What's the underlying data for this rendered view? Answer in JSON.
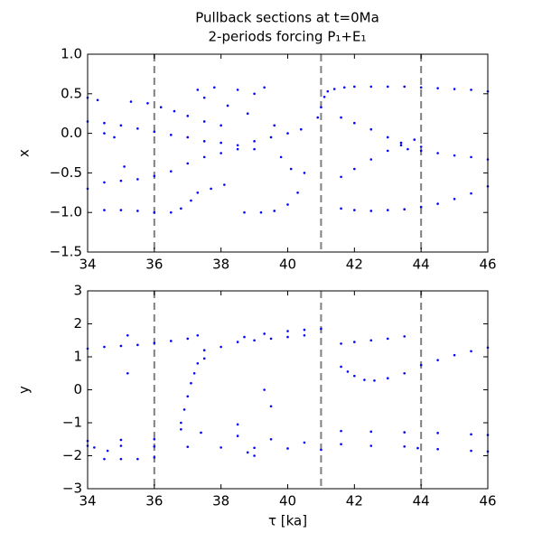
{
  "chart_data": [
    {
      "type": "scatter",
      "title": "Pullback sections at t=0Ma",
      "subtitle": "2-periods forcing P₁+E₁",
      "ylabel": "x",
      "color": "#0000ff",
      "xlim": [
        34,
        46
      ],
      "xticks": [
        34,
        36,
        38,
        40,
        42,
        44,
        46
      ],
      "ylim": [
        -1.5,
        1.0
      ],
      "yticks": [
        {
          "value": 1,
          "label": "1.0"
        },
        0.5,
        {
          "value": 0,
          "label": "0.0"
        },
        {
          "value": -0.5,
          "label": "−0.5"
        },
        {
          "value": -1,
          "label": "−1.0"
        },
        {
          "value": -1.5,
          "label": "−1.5"
        }
      ],
      "vlines": [
        36,
        41,
        44
      ],
      "vline_color": "#808080",
      "x": [
        40.9,
        41.0,
        41.1,
        41.2,
        41.4,
        41.7,
        42,
        42.5,
        43,
        43.5,
        44,
        44.5,
        45,
        45.5,
        46,
        41.6,
        42,
        42.5,
        43,
        43.4,
        43.6,
        44,
        44.5,
        45,
        45.5,
        46,
        41.6,
        42,
        42.5,
        43,
        43.4,
        43.8,
        44,
        41.6,
        42,
        42.5,
        43,
        43.5,
        44,
        44.5,
        45,
        45.5,
        46,
        34,
        34.5,
        35,
        35.5,
        36,
        36.5,
        37,
        37.5,
        38,
        38.5,
        39,
        39.5,
        40,
        40.4,
        34,
        34.5,
        35,
        35.5,
        36,
        36.5,
        37,
        37.5,
        38,
        38.5,
        39,
        35.3,
        35.8,
        36.2,
        36.6,
        37,
        37.5,
        38,
        34,
        34.3,
        34.5,
        35,
        35.5,
        36,
        36.5,
        36.8,
        37.1,
        37.3,
        38.7,
        39.2,
        39.6,
        40,
        40.3,
        40.5,
        37.3,
        37.5,
        37.8,
        38.2,
        38.5,
        38.8,
        39,
        39.3,
        39.6,
        39.8,
        40.1,
        37.7,
        38.1,
        35.1,
        34.5,
        34.8
      ],
      "y": [
        0.2,
        0.33,
        0.46,
        0.53,
        0.56,
        0.58,
        0.59,
        0.59,
        0.59,
        0.59,
        0.58,
        0.57,
        0.56,
        0.55,
        0.53,
        0.2,
        0.13,
        0.05,
        -0.05,
        -0.15,
        -0.2,
        -0.22,
        -0.25,
        -0.28,
        -0.3,
        -0.33,
        -0.55,
        -0.45,
        -0.33,
        -0.22,
        -0.12,
        -0.08,
        -0.17,
        -0.95,
        -0.97,
        -0.98,
        -0.97,
        -0.96,
        -0.93,
        -0.89,
        -0.83,
        -0.76,
        -0.67,
        -0.7,
        -0.62,
        -0.6,
        -0.58,
        -0.54,
        -0.48,
        -0.38,
        -0.3,
        -0.25,
        -0.2,
        -0.1,
        -0.05,
        0.0,
        0.05,
        0.15,
        0.13,
        0.1,
        0.06,
        0.02,
        -0.02,
        -0.05,
        -0.1,
        -0.12,
        -0.15,
        -0.2,
        0.4,
        0.38,
        0.33,
        0.28,
        0.22,
        0.15,
        0.1,
        0.45,
        0.42,
        -0.97,
        -0.97,
        -0.98,
        -1.0,
        -1.0,
        -0.95,
        -0.85,
        -0.75,
        -1.0,
        -1.0,
        -0.98,
        -0.9,
        -0.75,
        -0.5,
        0.55,
        0.45,
        0.58,
        0.35,
        0.55,
        0.25,
        0.5,
        0.58,
        0.1,
        -0.3,
        -0.45,
        -0.7,
        -0.65,
        -0.42,
        0.0,
        -0.05
      ]
    },
    {
      "type": "scatter",
      "ylabel": "y",
      "xlabel": "τ [ka]",
      "color": "#0000ff",
      "xlim": [
        34,
        46
      ],
      "xticks": [
        34,
        36,
        38,
        40,
        42,
        44,
        46
      ],
      "ylim": [
        -3,
        3
      ],
      "yticks": [
        3,
        2,
        1,
        0,
        {
          "value": -1,
          "label": "−1"
        },
        {
          "value": -2,
          "label": "−2"
        },
        {
          "value": -3,
          "label": "−3"
        }
      ],
      "vlines": [
        36,
        41,
        44
      ],
      "vline_color": "#808080",
      "x": [
        34,
        34.5,
        35,
        35.5,
        36,
        36.5,
        37,
        37.3,
        37.5,
        38,
        38.5,
        39,
        39.5,
        40,
        40.5,
        38.7,
        39.3,
        40,
        40.5,
        41,
        41.6,
        42,
        42.5,
        43,
        43.5,
        41.6,
        41.8,
        42,
        42.3,
        42.6,
        43,
        43.5,
        44,
        44.5,
        45,
        45.5,
        46,
        41.6,
        42.5,
        43.5,
        44.5,
        45.5,
        46,
        41.6,
        42.5,
        43.5,
        43.9,
        44.5,
        45.5,
        46,
        34,
        35,
        36,
        37,
        38,
        39,
        40,
        41,
        34,
        35,
        36,
        37.4,
        38.5,
        39.5,
        40.5,
        34.5,
        35,
        35.5,
        36,
        36.8,
        36.9,
        37.0,
        37.1,
        37.2,
        37.3,
        37.5,
        35.2,
        35.2,
        39.3,
        39.5,
        39.0,
        38.8,
        36.8,
        38.5,
        34.2,
        34.6
      ],
      "y": [
        1.25,
        1.3,
        1.33,
        1.36,
        1.42,
        1.48,
        1.55,
        1.65,
        1.2,
        1.3,
        1.45,
        1.5,
        1.55,
        1.6,
        1.65,
        1.6,
        1.7,
        1.78,
        1.82,
        1.85,
        1.4,
        1.45,
        1.5,
        1.55,
        1.62,
        0.7,
        0.55,
        0.42,
        0.3,
        0.28,
        0.35,
        0.5,
        0.75,
        0.9,
        1.05,
        1.17,
        1.28,
        -1.25,
        -1.27,
        -1.29,
        -1.31,
        -1.35,
        -1.37,
        -1.65,
        -1.7,
        -1.72,
        -1.77,
        -1.8,
        -1.85,
        -1.87,
        -1.7,
        -1.7,
        -1.72,
        -1.73,
        -1.75,
        -1.76,
        -1.78,
        -1.82,
        -1.55,
        -1.52,
        -1.5,
        -1.3,
        -1.4,
        -1.5,
        -1.6,
        -2.1,
        -2.1,
        -2.1,
        -2.05,
        -1.0,
        -0.6,
        -0.2,
        0.2,
        0.5,
        0.8,
        0.95,
        0.5,
        1.65,
        0.0,
        -0.5,
        -2.0,
        -1.9,
        -1.2,
        -1.05,
        -1.75,
        -1.85
      ]
    }
  ]
}
